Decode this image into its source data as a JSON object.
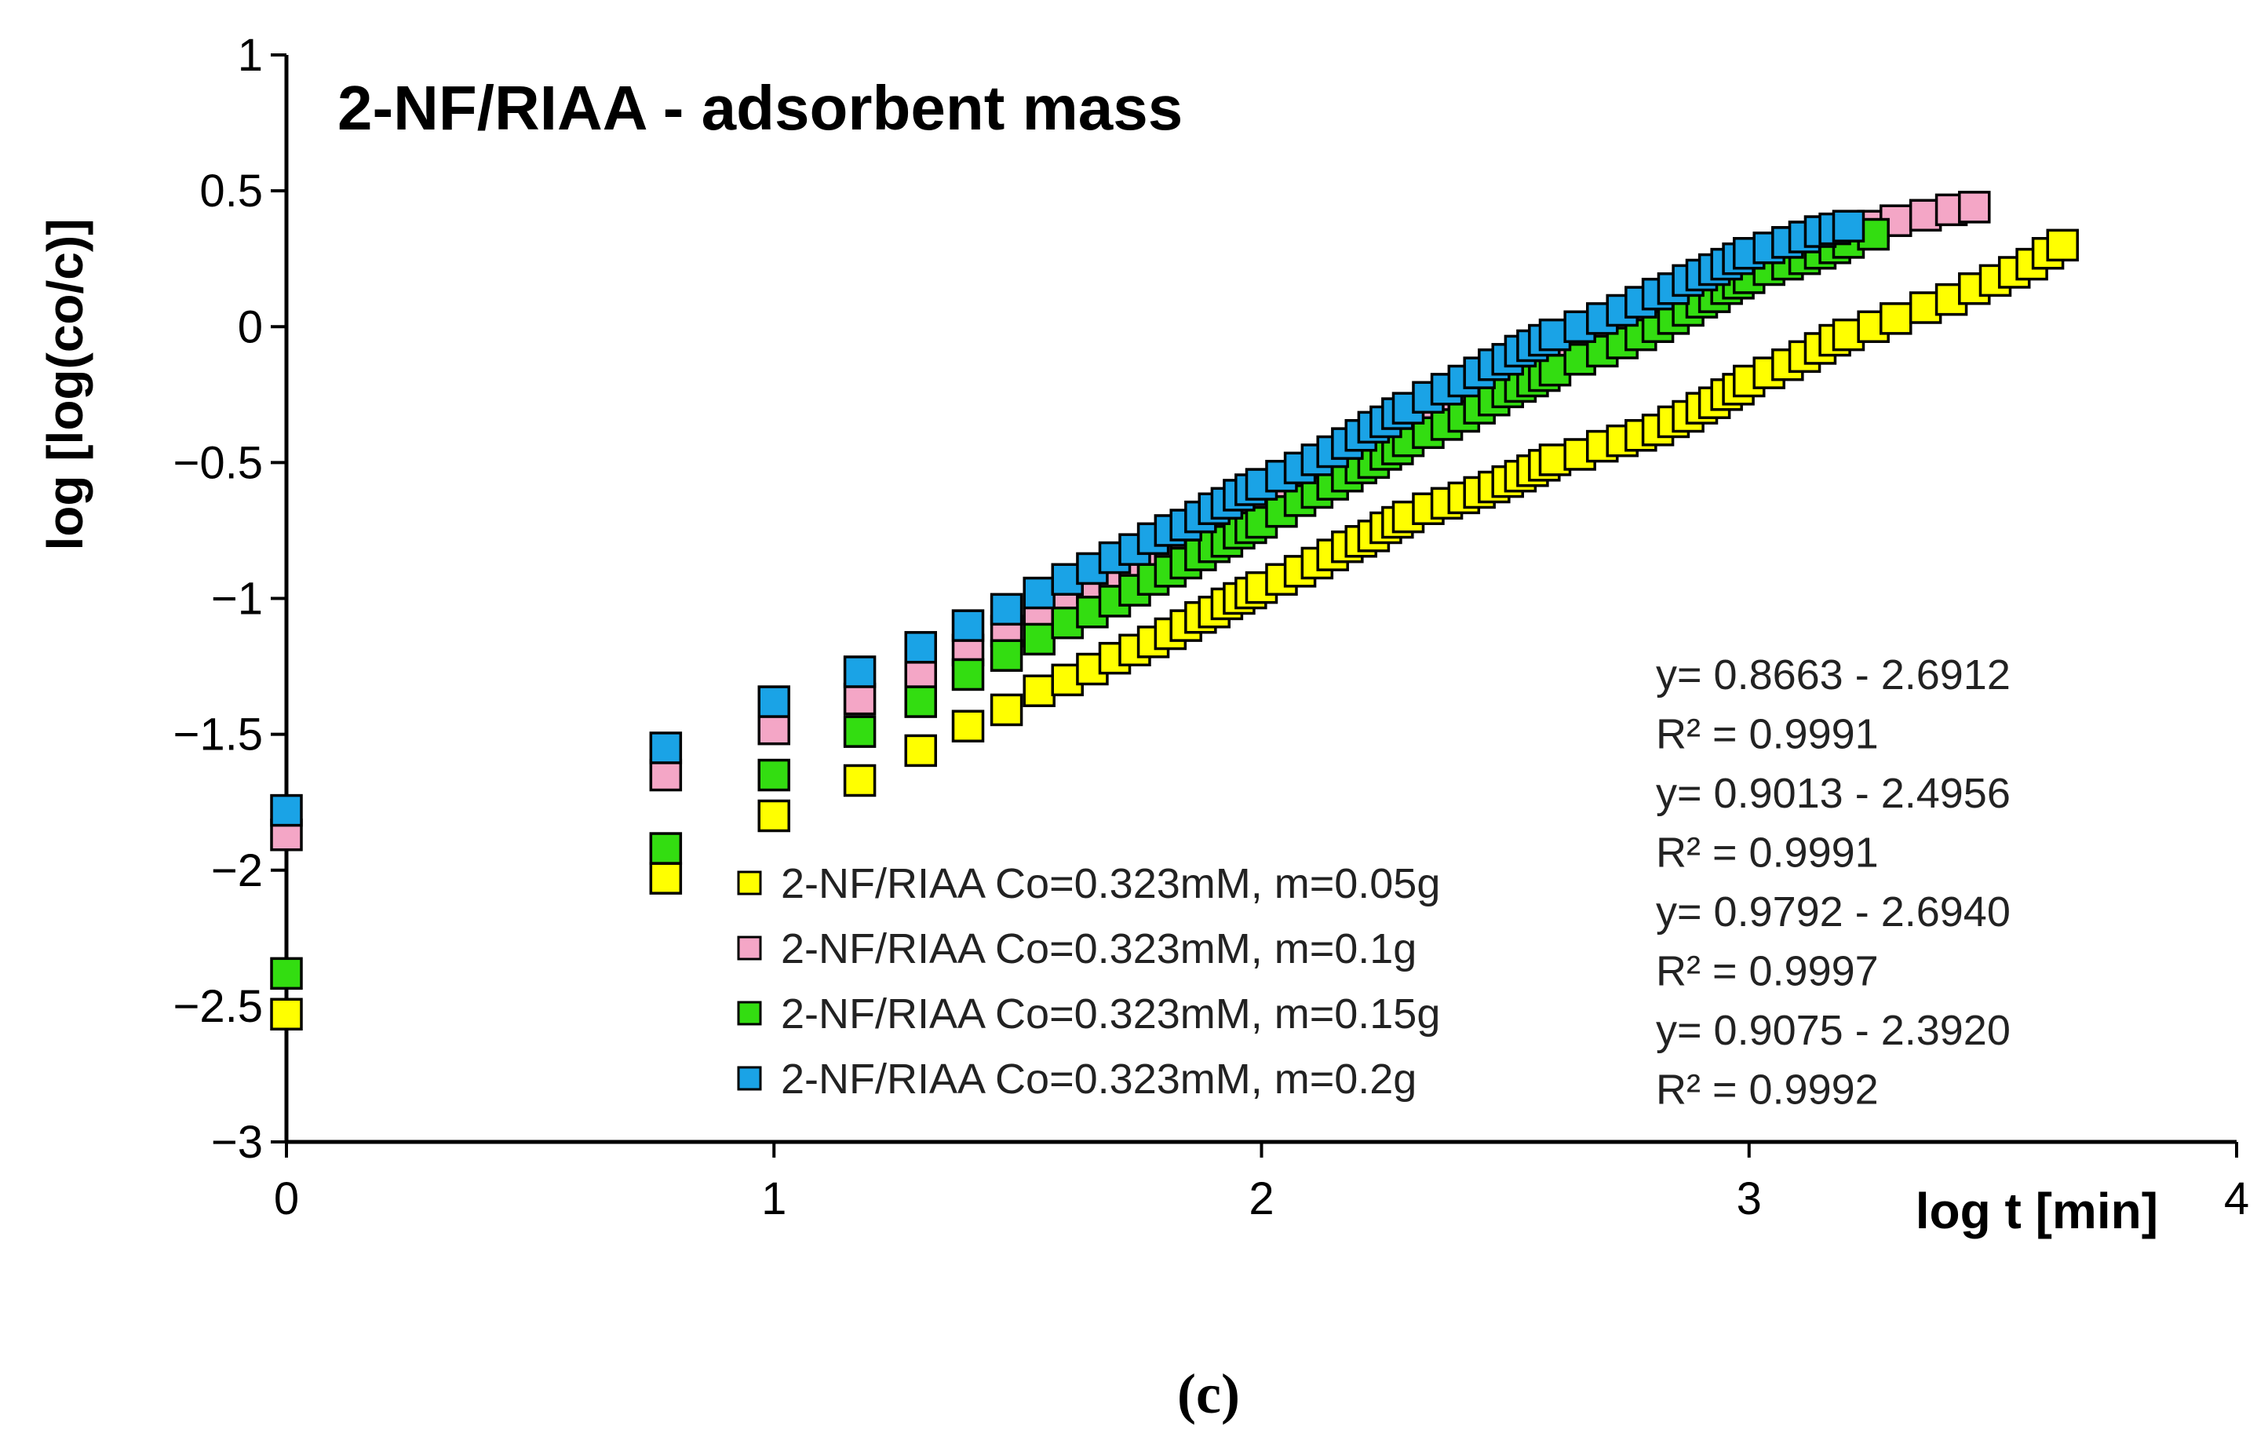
{
  "chart_data": {
    "type": "scatter",
    "title": "2-NF/RIAA - adsorbent mass",
    "xlabel": "log t [min]",
    "ylabel": "log [log(co/c)]",
    "xlim": [
      0,
      4
    ],
    "ylim": [
      -3,
      1
    ],
    "x_ticks": [
      "0",
      "1",
      "2",
      "3",
      "4"
    ],
    "y_ticks": [
      "1",
      "0.5",
      "0",
      "−0.5",
      "−1",
      "−1.5",
      "−2",
      "−2.5",
      "−3"
    ],
    "legend_position": "bottom-center",
    "series": [
      {
        "name": "2-NF/RIAA Co=0.323mM, m=0.05g",
        "color": "#ffff00",
        "points": [
          [
            0,
            -2.53
          ],
          [
            0.778,
            -2.03
          ],
          [
            1.0,
            -1.8
          ],
          [
            1.176,
            -1.67
          ],
          [
            1.301,
            -1.56
          ],
          [
            1.398,
            -1.47
          ],
          [
            1.477,
            -1.41
          ],
          [
            1.544,
            -1.34
          ],
          [
            1.602,
            -1.3
          ],
          [
            1.653,
            -1.26
          ],
          [
            1.699,
            -1.22
          ],
          [
            1.74,
            -1.19
          ],
          [
            1.778,
            -1.16
          ],
          [
            1.813,
            -1.13
          ],
          [
            1.845,
            -1.1
          ],
          [
            1.875,
            -1.07
          ],
          [
            1.903,
            -1.05
          ],
          [
            1.929,
            -1.02
          ],
          [
            1.954,
            -1.0
          ],
          [
            1.978,
            -0.98
          ],
          [
            2.0,
            -0.96
          ],
          [
            2.041,
            -0.93
          ],
          [
            2.079,
            -0.9
          ],
          [
            2.114,
            -0.87
          ],
          [
            2.146,
            -0.84
          ],
          [
            2.176,
            -0.81
          ],
          [
            2.204,
            -0.79
          ],
          [
            2.23,
            -0.77
          ],
          [
            2.255,
            -0.74
          ],
          [
            2.279,
            -0.72
          ],
          [
            2.301,
            -0.7
          ],
          [
            2.342,
            -0.67
          ],
          [
            2.38,
            -0.65
          ],
          [
            2.415,
            -0.63
          ],
          [
            2.447,
            -0.61
          ],
          [
            2.477,
            -0.59
          ],
          [
            2.505,
            -0.57
          ],
          [
            2.531,
            -0.55
          ],
          [
            2.556,
            -0.53
          ],
          [
            2.58,
            -0.51
          ],
          [
            2.602,
            -0.49
          ],
          [
            2.653,
            -0.47
          ],
          [
            2.699,
            -0.44
          ],
          [
            2.74,
            -0.42
          ],
          [
            2.778,
            -0.4
          ],
          [
            2.813,
            -0.38
          ],
          [
            2.845,
            -0.35
          ],
          [
            2.875,
            -0.33
          ],
          [
            2.903,
            -0.3
          ],
          [
            2.929,
            -0.28
          ],
          [
            2.954,
            -0.25
          ],
          [
            2.978,
            -0.23
          ],
          [
            3.0,
            -0.2
          ],
          [
            3.041,
            -0.17
          ],
          [
            3.079,
            -0.14
          ],
          [
            3.114,
            -0.11
          ],
          [
            3.146,
            -0.08
          ],
          [
            3.176,
            -0.05
          ],
          [
            3.204,
            -0.03
          ],
          [
            3.255,
            0.0
          ],
          [
            3.301,
            0.03
          ],
          [
            3.362,
            0.07
          ],
          [
            3.415,
            0.1
          ],
          [
            3.462,
            0.14
          ],
          [
            3.505,
            0.17
          ],
          [
            3.544,
            0.2
          ],
          [
            3.58,
            0.23
          ],
          [
            3.613,
            0.27
          ],
          [
            3.643,
            0.3
          ]
        ]
      },
      {
        "name": "2-NF/RIAA Co=0.323mM, m=0.1g",
        "color": "#f4a6c6",
        "points": [
          [
            0,
            -1.87
          ],
          [
            0.778,
            -1.65
          ],
          [
            1.0,
            -1.48
          ],
          [
            1.176,
            -1.37
          ],
          [
            1.301,
            -1.28
          ],
          [
            1.398,
            -1.19
          ],
          [
            1.477,
            -1.12
          ],
          [
            1.544,
            -1.06
          ],
          [
            1.602,
            -1.0
          ],
          [
            1.653,
            -0.96
          ],
          [
            1.699,
            -0.92
          ],
          [
            1.74,
            -0.88
          ],
          [
            1.778,
            -0.85
          ],
          [
            1.813,
            -0.82
          ],
          [
            1.845,
            -0.79
          ],
          [
            1.875,
            -0.76
          ],
          [
            1.903,
            -0.73
          ],
          [
            1.929,
            -0.71
          ],
          [
            1.954,
            -0.68
          ],
          [
            1.978,
            -0.66
          ],
          [
            2.0,
            -0.63
          ],
          [
            2.041,
            -0.6
          ],
          [
            2.079,
            -0.57
          ],
          [
            2.114,
            -0.53
          ],
          [
            2.146,
            -0.5
          ],
          [
            2.176,
            -0.47
          ],
          [
            2.204,
            -0.44
          ],
          [
            2.23,
            -0.42
          ],
          [
            2.255,
            -0.39
          ],
          [
            2.279,
            -0.36
          ],
          [
            2.301,
            -0.34
          ],
          [
            2.342,
            -0.31
          ],
          [
            2.38,
            -0.28
          ],
          [
            2.415,
            -0.25
          ],
          [
            2.447,
            -0.22
          ],
          [
            2.477,
            -0.19
          ],
          [
            2.505,
            -0.16
          ],
          [
            2.531,
            -0.14
          ],
          [
            2.556,
            -0.12
          ],
          [
            2.58,
            -0.1
          ],
          [
            2.602,
            -0.08
          ],
          [
            2.653,
            -0.05
          ],
          [
            2.699,
            -0.02
          ],
          [
            2.74,
            0.01
          ],
          [
            2.778,
            0.04
          ],
          [
            2.813,
            0.07
          ],
          [
            2.845,
            0.1
          ],
          [
            2.875,
            0.13
          ],
          [
            2.903,
            0.16
          ],
          [
            2.929,
            0.19
          ],
          [
            2.954,
            0.21
          ],
          [
            2.978,
            0.23
          ],
          [
            3.0,
            0.25
          ],
          [
            3.041,
            0.28
          ],
          [
            3.079,
            0.31
          ],
          [
            3.114,
            0.33
          ],
          [
            3.176,
            0.35
          ],
          [
            3.255,
            0.37
          ],
          [
            3.301,
            0.39
          ],
          [
            3.362,
            0.41
          ],
          [
            3.415,
            0.43
          ],
          [
            3.462,
            0.44
          ]
        ]
      },
      {
        "name": "2-NF/RIAA Co=0.323mM, m=0.15g",
        "color": "#33dd11",
        "points": [
          [
            0,
            -2.38
          ],
          [
            0.778,
            -1.92
          ],
          [
            1.0,
            -1.65
          ],
          [
            1.176,
            -1.49
          ],
          [
            1.301,
            -1.38
          ],
          [
            1.398,
            -1.28
          ],
          [
            1.477,
            -1.21
          ],
          [
            1.544,
            -1.15
          ],
          [
            1.602,
            -1.09
          ],
          [
            1.653,
            -1.05
          ],
          [
            1.699,
            -1.01
          ],
          [
            1.74,
            -0.97
          ],
          [
            1.778,
            -0.93
          ],
          [
            1.813,
            -0.9
          ],
          [
            1.845,
            -0.87
          ],
          [
            1.875,
            -0.84
          ],
          [
            1.903,
            -0.81
          ],
          [
            1.929,
            -0.79
          ],
          [
            1.954,
            -0.76
          ],
          [
            1.978,
            -0.74
          ],
          [
            2.0,
            -0.72
          ],
          [
            2.041,
            -0.68
          ],
          [
            2.079,
            -0.64
          ],
          [
            2.114,
            -0.61
          ],
          [
            2.146,
            -0.58
          ],
          [
            2.176,
            -0.55
          ],
          [
            2.204,
            -0.52
          ],
          [
            2.23,
            -0.5
          ],
          [
            2.255,
            -0.47
          ],
          [
            2.279,
            -0.45
          ],
          [
            2.301,
            -0.42
          ],
          [
            2.342,
            -0.39
          ],
          [
            2.38,
            -0.36
          ],
          [
            2.415,
            -0.33
          ],
          [
            2.447,
            -0.3
          ],
          [
            2.477,
            -0.27
          ],
          [
            2.505,
            -0.24
          ],
          [
            2.531,
            -0.22
          ],
          [
            2.556,
            -0.2
          ],
          [
            2.58,
            -0.18
          ],
          [
            2.602,
            -0.16
          ],
          [
            2.653,
            -0.12
          ],
          [
            2.699,
            -0.09
          ],
          [
            2.74,
            -0.06
          ],
          [
            2.778,
            -0.03
          ],
          [
            2.813,
            0.0
          ],
          [
            2.845,
            0.03
          ],
          [
            2.875,
            0.06
          ],
          [
            2.903,
            0.09
          ],
          [
            2.929,
            0.11
          ],
          [
            2.954,
            0.14
          ],
          [
            2.978,
            0.16
          ],
          [
            3.0,
            0.18
          ],
          [
            3.041,
            0.21
          ],
          [
            3.079,
            0.23
          ],
          [
            3.114,
            0.25
          ],
          [
            3.146,
            0.27
          ],
          [
            3.176,
            0.29
          ],
          [
            3.204,
            0.31
          ],
          [
            3.255,
            0.34
          ]
        ]
      },
      {
        "name": "2-NF/RIAA Co=0.323mM, m=0.2g",
        "color": "#1aa3e6",
        "points": [
          [
            0,
            -1.78
          ],
          [
            0.778,
            -1.55
          ],
          [
            1.0,
            -1.38
          ],
          [
            1.176,
            -1.27
          ],
          [
            1.301,
            -1.18
          ],
          [
            1.398,
            -1.1
          ],
          [
            1.477,
            -1.04
          ],
          [
            1.544,
            -0.98
          ],
          [
            1.602,
            -0.93
          ],
          [
            1.653,
            -0.89
          ],
          [
            1.699,
            -0.85
          ],
          [
            1.74,
            -0.82
          ],
          [
            1.778,
            -0.78
          ],
          [
            1.813,
            -0.75
          ],
          [
            1.845,
            -0.73
          ],
          [
            1.875,
            -0.7
          ],
          [
            1.903,
            -0.67
          ],
          [
            1.929,
            -0.65
          ],
          [
            1.954,
            -0.62
          ],
          [
            1.978,
            -0.6
          ],
          [
            2.0,
            -0.58
          ],
          [
            2.041,
            -0.55
          ],
          [
            2.079,
            -0.52
          ],
          [
            2.114,
            -0.49
          ],
          [
            2.146,
            -0.46
          ],
          [
            2.176,
            -0.43
          ],
          [
            2.204,
            -0.4
          ],
          [
            2.23,
            -0.37
          ],
          [
            2.255,
            -0.35
          ],
          [
            2.279,
            -0.32
          ],
          [
            2.301,
            -0.3
          ],
          [
            2.342,
            -0.26
          ],
          [
            2.38,
            -0.23
          ],
          [
            2.415,
            -0.2
          ],
          [
            2.447,
            -0.17
          ],
          [
            2.477,
            -0.14
          ],
          [
            2.505,
            -0.12
          ],
          [
            2.531,
            -0.09
          ],
          [
            2.556,
            -0.07
          ],
          [
            2.58,
            -0.05
          ],
          [
            2.602,
            -0.03
          ],
          [
            2.653,
            0.0
          ],
          [
            2.699,
            0.03
          ],
          [
            2.74,
            0.06
          ],
          [
            2.778,
            0.09
          ],
          [
            2.813,
            0.12
          ],
          [
            2.845,
            0.14
          ],
          [
            2.875,
            0.17
          ],
          [
            2.903,
            0.19
          ],
          [
            2.929,
            0.21
          ],
          [
            2.954,
            0.23
          ],
          [
            2.978,
            0.25
          ],
          [
            3.0,
            0.27
          ],
          [
            3.041,
            0.29
          ],
          [
            3.079,
            0.31
          ],
          [
            3.114,
            0.33
          ],
          [
            3.146,
            0.35
          ],
          [
            3.176,
            0.36
          ],
          [
            3.204,
            0.37
          ]
        ]
      }
    ],
    "annotations": [
      "y= 0.8663 - 2.6912",
      "R² = 0.9991",
      "y= 0.9013 - 2.4956",
      "R² = 0.9991",
      "y= 0.9792 - 2.6940",
      "R² = 0.9997",
      "y= 0.9075 - 2.3920",
      "R² = 0.9992"
    ],
    "caption": "(c)"
  }
}
